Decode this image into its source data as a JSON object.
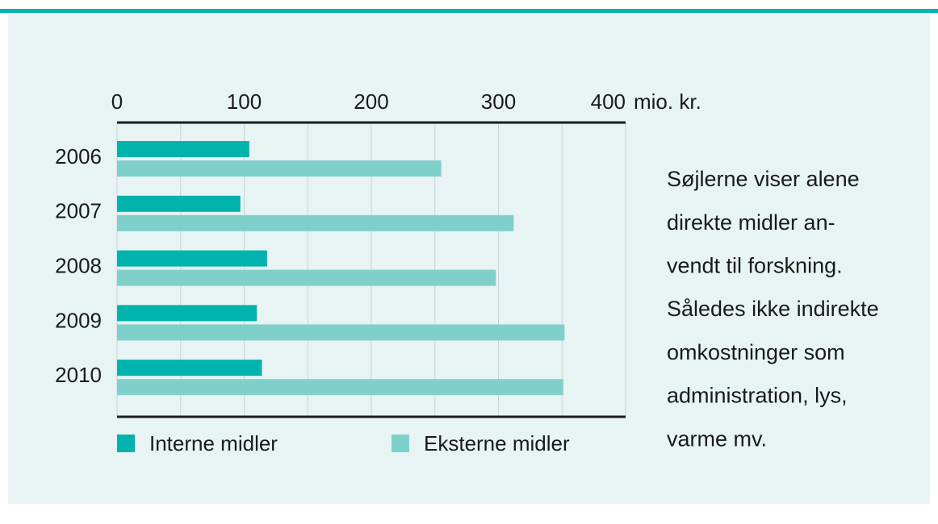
{
  "chart_data": {
    "type": "bar",
    "orientation": "horizontal",
    "xlabel": "mio. kr.",
    "categories": [
      "2006",
      "2007",
      "2008",
      "2009",
      "2010"
    ],
    "series": [
      {
        "name": "Interne midler",
        "color": "#00b3ad",
        "values": [
          104,
          97,
          118,
          110,
          114
        ]
      },
      {
        "name": "Eksterne midler",
        "color": "#7fd0cb",
        "values": [
          255,
          312,
          298,
          352,
          351
        ]
      }
    ],
    "xlim": [
      0,
      400
    ],
    "xticks": [
      0,
      100,
      200,
      300,
      400
    ],
    "grid_ticks": [
      0,
      50,
      100,
      150,
      200,
      250,
      300,
      350,
      400
    ],
    "grid": true,
    "legend": "bottom",
    "note": [
      "Søjlerne viser alene",
      "direkte midler an-",
      "vendt til forskning.",
      "Således ikke indirekte",
      "omkostninger som",
      "administration, lys,",
      "varme mv."
    ]
  }
}
